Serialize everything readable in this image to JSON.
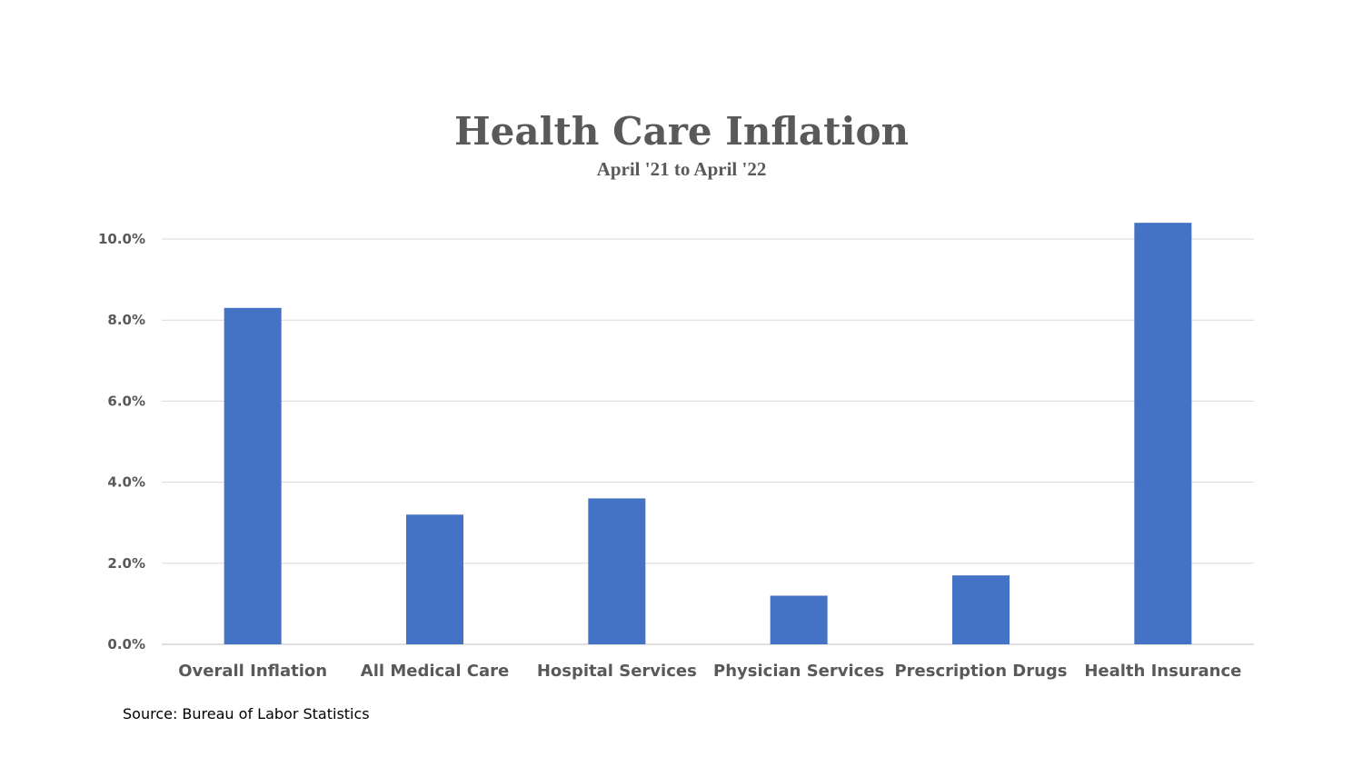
{
  "chart_data": {
    "type": "bar",
    "title": "Health Care Inflation",
    "subtitle": "April '21 to April '22",
    "categories": [
      "Overall Inflation",
      "All Medical Care",
      "Hospital Services",
      "Physician Services",
      "Prescription Drugs",
      "Health Insurance"
    ],
    "values": [
      8.3,
      3.2,
      3.6,
      1.2,
      1.7,
      10.4
    ],
    "y_ticks": [
      "0.0%",
      "2.0%",
      "4.0%",
      "6.0%",
      "8.0%",
      "10.0%"
    ],
    "ylim": [
      0,
      10
    ],
    "grid": true,
    "bar_color": "#4472C4",
    "source": "Source: Bureau of Labor Statistics"
  }
}
